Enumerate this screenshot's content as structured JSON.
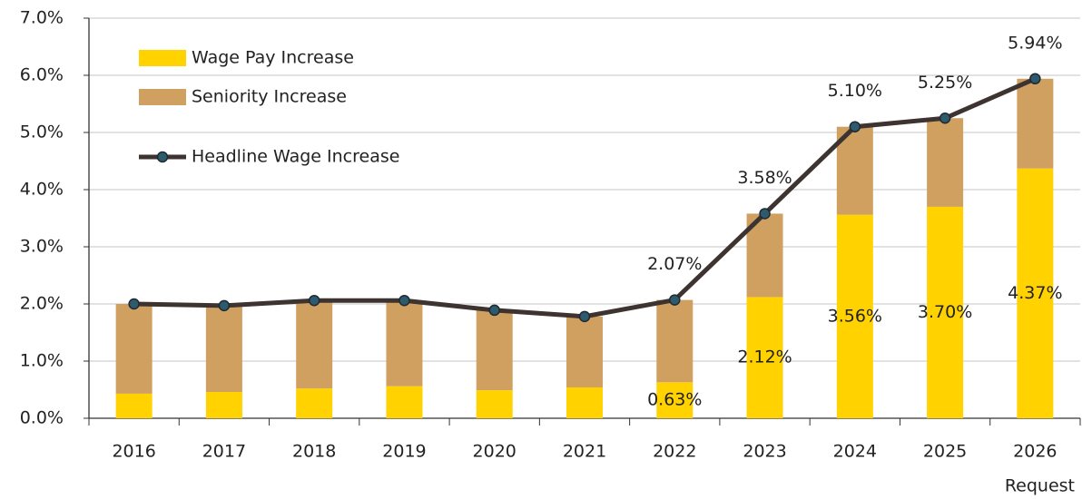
{
  "chart_data": {
    "type": "bar",
    "categories": [
      "2016",
      "2017",
      "2018",
      "2019",
      "2020",
      "2021",
      "2022",
      "2023",
      "2024",
      "2025",
      "2026"
    ],
    "annotations": [
      "Request"
    ],
    "series": [
      {
        "name": "Wage Pay Increase",
        "color": "#ffd200",
        "type": "bar",
        "values": [
          0.43,
          0.46,
          0.52,
          0.56,
          0.49,
          0.54,
          0.63,
          2.12,
          3.56,
          3.7,
          4.37
        ],
        "value_labels": [
          null,
          null,
          null,
          null,
          null,
          null,
          "0.63%",
          "2.12%",
          "3.56%",
          "3.70%",
          "4.37%"
        ]
      },
      {
        "name": "Seniority Increase",
        "color": "#d0a060",
        "type": "bar",
        "values": [
          1.57,
          1.51,
          1.54,
          1.5,
          1.4,
          1.24,
          1.44,
          1.46,
          1.54,
          1.55,
          1.57
        ]
      },
      {
        "name": "Headline Wage Increase",
        "color": "#3d3330",
        "marker_color": "#2e5a6e",
        "type": "line",
        "values": [
          2.0,
          1.97,
          2.06,
          2.06,
          1.89,
          1.78,
          2.07,
          3.58,
          5.1,
          5.25,
          5.94
        ],
        "value_labels": [
          null,
          null,
          null,
          null,
          null,
          null,
          "2.07%",
          "3.58%",
          "5.10%",
          "5.25%",
          "5.94%"
        ]
      }
    ],
    "ylim": [
      0,
      7
    ],
    "yticks": [
      {
        "value": 0,
        "label": "0.0%"
      },
      {
        "value": 1,
        "label": "1.0%"
      },
      {
        "value": 2,
        "label": "2.0%"
      },
      {
        "value": 3,
        "label": "3.0%"
      },
      {
        "value": 4,
        "label": "4.0%"
      },
      {
        "value": 5,
        "label": "5.0%"
      },
      {
        "value": 6,
        "label": "6.0%"
      },
      {
        "value": 7,
        "label": "7.0%"
      }
    ],
    "grid": true,
    "legend": "upper left"
  }
}
